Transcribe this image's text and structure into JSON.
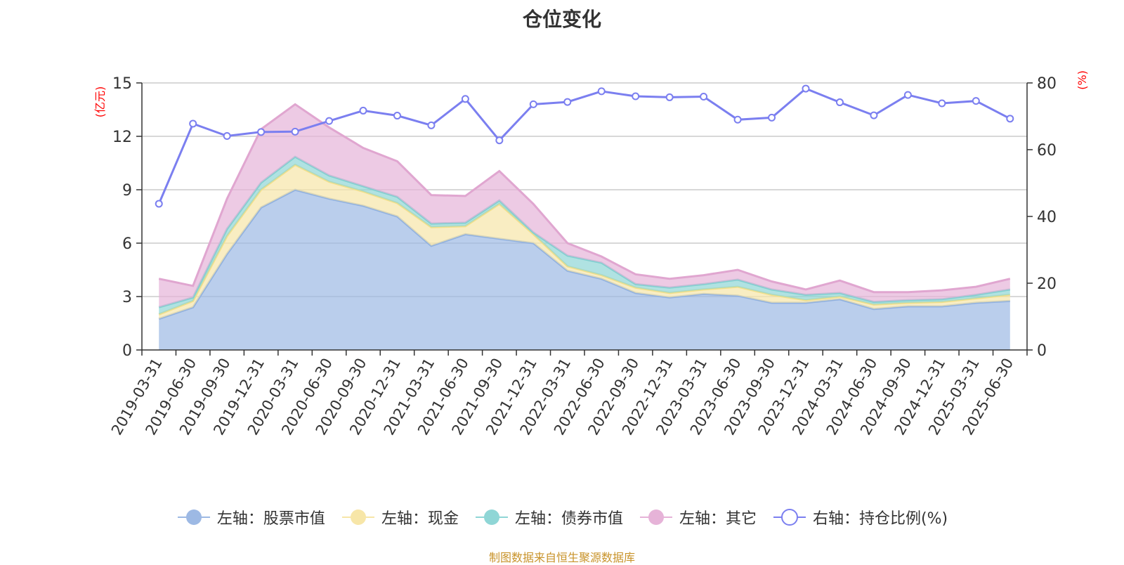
{
  "title": "仓位变化",
  "source_note": "制图数据来自恒生聚源数据库",
  "colors": {
    "stock": "#9db9e4",
    "cash": "#f7e6a8",
    "bond": "#8fd6d6",
    "other": "#e6b3d8",
    "ratio": "#7b7ff0",
    "axis_label_red": "#ff0000"
  },
  "legend": [
    {
      "label": "左轴：股票市值",
      "color": "#9db9e4",
      "kind": "filled"
    },
    {
      "label": "左轴：现金",
      "color": "#f7e6a8",
      "kind": "filled"
    },
    {
      "label": "左轴：债券市值",
      "color": "#8fd6d6",
      "kind": "filled"
    },
    {
      "label": "左轴：其它",
      "color": "#e6b3d8",
      "kind": "filled"
    },
    {
      "label": "右轴：持仓比例(%)",
      "color": "#7b7ff0",
      "kind": "hollow"
    }
  ],
  "chart_data": {
    "type": "area",
    "title": "仓位变化",
    "x": [
      "2019-03-31",
      "2019-06-30",
      "2019-09-30",
      "2019-12-31",
      "2020-03-31",
      "2020-06-30",
      "2020-09-30",
      "2020-12-31",
      "2021-03-31",
      "2021-06-30",
      "2021-09-30",
      "2021-12-31",
      "2022-03-31",
      "2022-06-30",
      "2022-09-30",
      "2022-12-31",
      "2023-03-31",
      "2023-06-30",
      "2023-09-30",
      "2023-12-31",
      "2024-03-31",
      "2024-06-30",
      "2024-09-30",
      "2024-12-31",
      "2025-03-31",
      "2025-06-30"
    ],
    "y_left": {
      "label": "(亿元)",
      "ylim": [
        0,
        15
      ],
      "ticks": [
        0,
        3,
        6,
        9,
        12,
        15
      ]
    },
    "y_right": {
      "label": "(%)",
      "ylim": [
        0,
        80
      ],
      "ticks": [
        0,
        20,
        40,
        60,
        80
      ]
    },
    "grid": true,
    "legend_position": "bottom",
    "stacked": true,
    "series": [
      {
        "name": "左轴：股票市值",
        "axis": "left",
        "type": "area",
        "values": [
          1.75,
          2.4,
          5.4,
          8.0,
          9.0,
          8.5,
          8.1,
          7.5,
          5.85,
          6.5,
          6.25,
          6.0,
          4.45,
          4.0,
          3.2,
          2.95,
          3.15,
          3.05,
          2.65,
          2.65,
          2.85,
          2.3,
          2.45,
          2.45,
          2.65,
          2.75
        ]
      },
      {
        "name": "左轴：现金",
        "axis": "left",
        "type": "area",
        "values": [
          0.25,
          0.35,
          1.0,
          1.0,
          1.4,
          0.95,
          0.8,
          0.75,
          1.05,
          0.45,
          1.95,
          0.5,
          0.25,
          0.2,
          0.3,
          0.25,
          0.25,
          0.5,
          0.45,
          0.15,
          0.15,
          0.25,
          0.2,
          0.25,
          0.25,
          0.35
        ]
      },
      {
        "name": "左轴：债券市值",
        "axis": "left",
        "type": "area",
        "values": [
          0.4,
          0.2,
          0.4,
          0.4,
          0.45,
          0.35,
          0.3,
          0.35,
          0.2,
          0.2,
          0.2,
          0.1,
          0.6,
          0.7,
          0.2,
          0.3,
          0.3,
          0.4,
          0.3,
          0.3,
          0.2,
          0.15,
          0.15,
          0.15,
          0.2,
          0.3
        ]
      },
      {
        "name": "左轴：其它",
        "axis": "left",
        "type": "area",
        "values": [
          1.6,
          0.65,
          1.7,
          3.0,
          2.95,
          2.7,
          2.15,
          2.0,
          1.6,
          1.5,
          1.65,
          1.6,
          0.7,
          0.35,
          0.55,
          0.5,
          0.5,
          0.55,
          0.45,
          0.3,
          0.7,
          0.55,
          0.45,
          0.5,
          0.45,
          0.6
        ]
      },
      {
        "name": "右轴：持仓比例(%)",
        "axis": "right",
        "type": "line",
        "values": [
          43.8,
          67.8,
          64.1,
          65.3,
          65.4,
          68.6,
          71.7,
          70.2,
          67.3,
          75.2,
          62.8,
          73.6,
          74.3,
          77.5,
          76.0,
          75.7,
          75.9,
          69.0,
          69.6,
          78.3,
          74.2,
          70.3,
          76.4,
          73.9,
          74.6,
          69.3
        ]
      }
    ]
  }
}
